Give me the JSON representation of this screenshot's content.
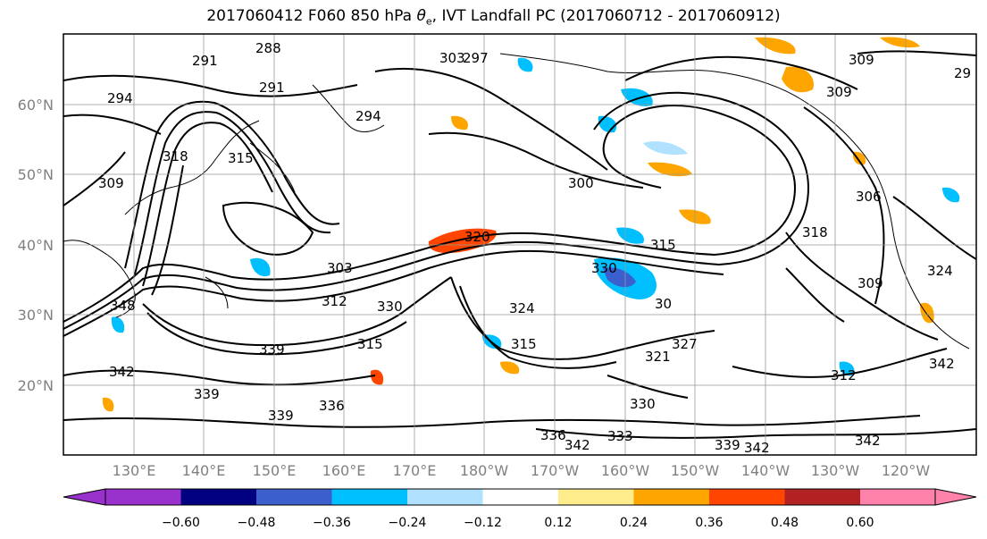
{
  "title": {
    "text": "2017060412 F060 850 hPa θe, IVT Landfall PC (2017060712 - 2017060912)"
  },
  "map": {
    "lat_ticks": [
      "60°N",
      "50°N",
      "40°N",
      "30°N",
      "20°N"
    ],
    "lon_ticks": [
      "130°E",
      "140°E",
      "150°E",
      "160°E",
      "170°E",
      "180°W",
      "170°W",
      "160°W",
      "150°W",
      "140°W",
      "130°W",
      "120°W"
    ],
    "contour_labels": [
      "288",
      "291",
      "291",
      "294",
      "297",
      "303",
      "294",
      "309",
      "309",
      "29",
      "318",
      "315",
      "309",
      "300",
      "306",
      "318",
      "315",
      "303",
      "312",
      "330",
      "330",
      "324",
      "30",
      "309",
      "324",
      "320",
      "315",
      "339",
      "321",
      "327",
      "312",
      "342",
      "339",
      "339",
      "336",
      "342",
      "315",
      "330",
      "336",
      "342",
      "333",
      "339",
      "342",
      "342",
      "348"
    ],
    "grid": true,
    "coastline_color": "#000000",
    "contour_color": "#000000"
  },
  "colorbar": {
    "tick_labels": [
      "−0.60",
      "−0.48",
      "−0.36",
      "−0.24",
      "−0.12",
      "0.12",
      "0.24",
      "0.36",
      "0.48",
      "0.60"
    ],
    "colors": [
      "#9932cc",
      "#000080",
      "#3b5fcd",
      "#00bfff",
      "#b0e2ff",
      "#ffffff",
      "#ffec8b",
      "#ffa500",
      "#ff4500",
      "#b22222",
      "#ff82ab"
    ]
  }
}
